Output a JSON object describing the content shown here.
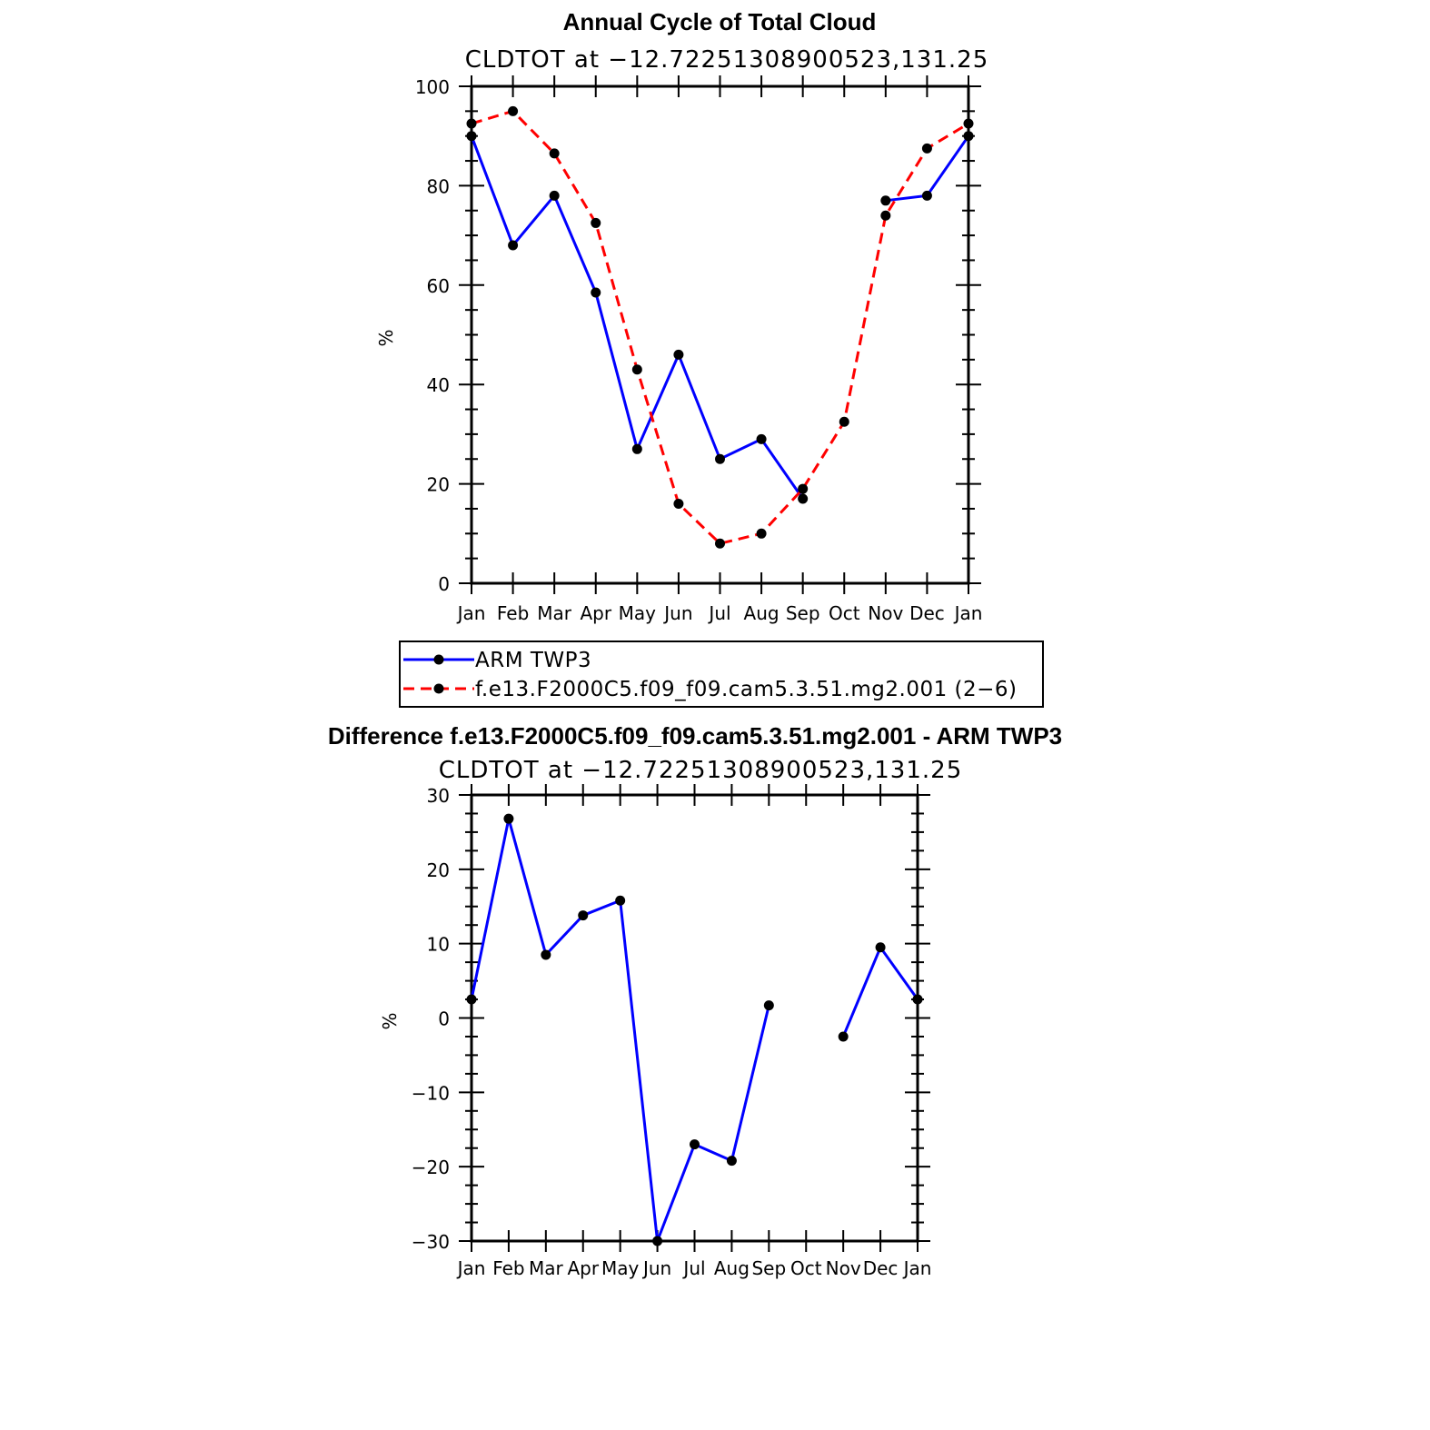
{
  "chart_data": [
    {
      "type": "line",
      "title": "Annual Cycle of Total Cloud",
      "subtitle": "CLDTOT at −12.72251308900523,131.25",
      "ylabel": "%",
      "xlabel": "",
      "ylim": [
        0,
        100
      ],
      "yticks": [
        "0",
        "20",
        "40",
        "60",
        "80",
        "100"
      ],
      "categories": [
        "Jan",
        "Feb",
        "Mar",
        "Apr",
        "May",
        "Jun",
        "Jul",
        "Aug",
        "Sep",
        "Oct",
        "Nov",
        "Dec",
        "Jan"
      ],
      "series": [
        {
          "name": "ARM TWP3",
          "color": "#0000ff",
          "dash": "solid",
          "values": [
            90,
            68,
            78,
            58.5,
            27,
            46,
            25,
            29,
            17,
            null,
            77,
            78,
            90
          ]
        },
        {
          "name": "f.e13.F2000C5.f09_f09.cam5.3.51.mg2.001 (2−6)",
          "color": "#ff0000",
          "dash": "dashed",
          "values": [
            92.5,
            95,
            86.5,
            72.5,
            43,
            16,
            8,
            10,
            19,
            32.5,
            74,
            87.5,
            92.5
          ]
        }
      ],
      "legend": "below"
    },
    {
      "type": "line",
      "title": "Difference f.e13.F2000C5.f09_f09.cam5.3.51.mg2.001 - ARM TWP3",
      "subtitle": "CLDTOT at −12.72251308900523,131.25",
      "ylabel": "%",
      "xlabel": "",
      "ylim": [
        -30,
        30
      ],
      "yticks": [
        "−30",
        "−20",
        "−10",
        "0",
        "10",
        "20",
        "30"
      ],
      "categories": [
        "Jan",
        "Feb",
        "Mar",
        "Apr",
        "May",
        "Jun",
        "Jul",
        "Aug",
        "Sep",
        "Oct",
        "Nov",
        "Dec",
        "Jan"
      ],
      "series": [
        {
          "name": "Difference",
          "color": "#0000ff",
          "dash": "solid",
          "values": [
            2.5,
            26.8,
            8.5,
            13.8,
            15.8,
            -30,
            -17,
            -19.2,
            1.7,
            null,
            -2.5,
            9.5,
            2.5
          ]
        }
      ]
    }
  ]
}
